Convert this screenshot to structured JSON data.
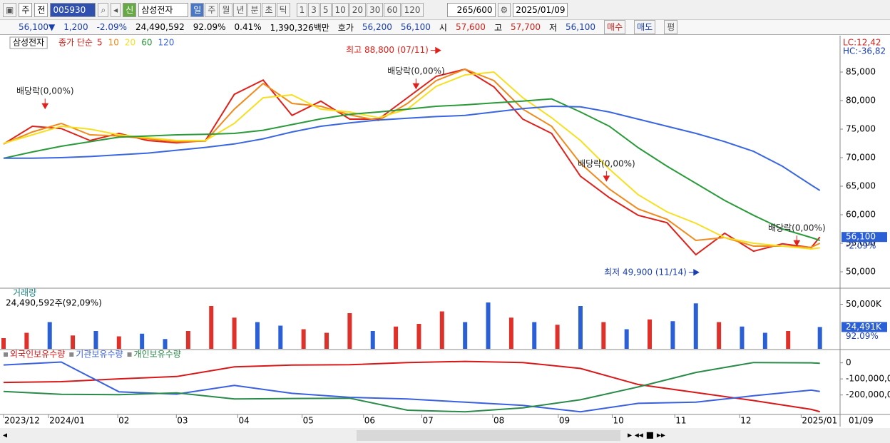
{
  "toolbar": {
    "market": "주",
    "prev": "전",
    "code": "005930",
    "credit": "신",
    "name": "삼성전자",
    "periods": [
      "일",
      "주",
      "월",
      "년",
      "분",
      "초",
      "틱"
    ],
    "intervals": [
      "1",
      "3",
      "5",
      "10",
      "20",
      "30",
      "60",
      "120"
    ],
    "count": "265",
    "max": "/600",
    "date": "2025/01/09"
  },
  "info_bar": {
    "price": "56,100▼",
    "change": "1,200",
    "rate": "-2.09%",
    "volume": "24,490,592",
    "vol_ratio": "92.09%",
    "turnover": "0.41%",
    "amount": "1,390,326백만",
    "ask_label": "호가",
    "ask": "56,200",
    "bid": "56,100",
    "open_label": "시",
    "open": "57,600",
    "high_label": "고",
    "high": "57,700",
    "low_label": "저",
    "low": "56,100",
    "buy": "매수",
    "sell": "매도",
    "eval": "평"
  },
  "chart_data": [
    {
      "type": "line",
      "title": "삼성전자",
      "legend_title": "종가 단순",
      "lc": "LC:12,42",
      "hc": "HC:-36,82",
      "x": [
        0,
        10,
        20,
        30,
        40,
        50,
        60,
        70,
        80,
        90,
        100,
        110,
        120,
        130,
        140,
        150,
        160,
        170,
        180,
        190,
        200,
        210,
        220,
        230,
        240,
        250,
        260,
        270,
        280,
        283
      ],
      "series": [
        {
          "name": "5",
          "color": "#e0201a",
          "values": [
            72400,
            75500,
            75100,
            73000,
            74250,
            73000,
            72600,
            73000,
            81100,
            83600,
            77400,
            79900,
            76750,
            76750,
            80500,
            84250,
            85500,
            82400,
            76750,
            74250,
            66750,
            63000,
            59900,
            58600,
            53000,
            56750,
            53600,
            54900,
            54250,
            56100
          ]
        },
        {
          "name": "10",
          "color": "#f08a1c",
          "values": [
            72400,
            74500,
            76000,
            74000,
            73800,
            73300,
            72800,
            72900,
            78500,
            83000,
            79500,
            79000,
            77500,
            76500,
            79500,
            83500,
            85500,
            83500,
            78500,
            75500,
            69000,
            64500,
            61000,
            59200,
            55500,
            56000,
            54500,
            54500,
            54300,
            55000
          ]
        },
        {
          "name": "20",
          "color": "#f5e020",
          "values": [
            72500,
            74000,
            75500,
            75000,
            74000,
            73500,
            73000,
            73000,
            76000,
            80500,
            81000,
            78500,
            78000,
            77000,
            78500,
            82500,
            84500,
            85000,
            80500,
            77000,
            73000,
            68000,
            63500,
            60500,
            58500,
            56000,
            55000,
            54500,
            54000,
            54200
          ]
        },
        {
          "name": "60",
          "color": "#2a9a3a",
          "values": [
            69900,
            71000,
            72000,
            72800,
            73600,
            73800,
            74000,
            74100,
            74250,
            74800,
            75800,
            76800,
            77600,
            78000,
            78500,
            79000,
            79250,
            79600,
            79900,
            80300,
            78000,
            75500,
            71750,
            68500,
            65500,
            62500,
            59900,
            57500,
            56000,
            55500
          ]
        },
        {
          "name": "120",
          "color": "#3a66e0",
          "values": [
            69900,
            69900,
            70000,
            70200,
            70500,
            70800,
            71300,
            71800,
            72400,
            73300,
            74500,
            75500,
            76100,
            76600,
            76900,
            77200,
            77400,
            78000,
            78600,
            79000,
            78900,
            78000,
            76750,
            75500,
            74250,
            72800,
            71100,
            68500,
            65200,
            64250
          ]
        }
      ],
      "ylim": [
        47250,
        90500
      ],
      "yticks": [
        {
          "value": 50000,
          "label": "50,000"
        },
        {
          "value": 55000,
          "label": "55,000"
        },
        {
          "value": 60000,
          "label": "60,000"
        },
        {
          "value": 65000,
          "label": "65,000"
        },
        {
          "value": 70000,
          "label": "70,000"
        },
        {
          "value": 75000,
          "label": "75,000"
        },
        {
          "value": 80000,
          "label": "80,000"
        },
        {
          "value": 85000,
          "label": "85,000"
        }
      ],
      "xlim": [
        0,
        290
      ],
      "xticks": [
        {
          "value": 0,
          "label": "2023/12"
        },
        {
          "value": 15.6,
          "label": "2024/01"
        },
        {
          "value": 39.6,
          "label": "02"
        },
        {
          "value": 59.9,
          "label": "03"
        },
        {
          "value": 81.2,
          "label": "04"
        },
        {
          "value": 103.5,
          "label": "05"
        },
        {
          "value": 124.8,
          "label": "06"
        },
        {
          "value": 145,
          "label": "07"
        },
        {
          "value": 169.6,
          "label": "08"
        },
        {
          "value": 192.3,
          "label": "09"
        },
        {
          "value": 211,
          "label": "10"
        },
        {
          "value": 232.7,
          "label": "11"
        },
        {
          "value": 255.2,
          "label": "12"
        },
        {
          "value": 276.5,
          "label": "2025/01"
        }
      ],
      "x_end_label": "01/09",
      "last_label": {
        "value": 56100,
        "label": "56,100"
      },
      "change_label": "-2.09%",
      "annotations": [
        {
          "text": "배당락(0,00%)",
          "x": 14.4,
          "y": 78600,
          "arrow": "down",
          "color": "#e0201a"
        },
        {
          "text": "최고 88,800 (07/11)",
          "x": 151.5,
          "y": 88800,
          "arrow": "right",
          "color": "#e0201a"
        },
        {
          "text": "배당락(0,00%)",
          "x": 143,
          "y": 82100,
          "arrow": "down",
          "color": "#e0201a"
        },
        {
          "text": "배당락(0,00%)",
          "x": 209,
          "y": 65900,
          "arrow": "down",
          "color": "#e0201a"
        },
        {
          "text": "최저 49,900 (11/14)",
          "x": 241,
          "y": 49900,
          "arrow": "right",
          "color": "#1a3fb0"
        },
        {
          "text": "배당락(0,00%)",
          "x": 275,
          "y": 54600,
          "arrow": "down",
          "color": "#e0201a"
        }
      ]
    },
    {
      "type": "bar",
      "title": "거래량",
      "subtitle": "24,490,592주(92,09%)",
      "x": [
        0,
        8,
        16,
        24,
        32,
        40,
        48,
        56,
        64,
        72,
        80,
        88,
        96,
        104,
        112,
        120,
        128,
        136,
        144,
        152,
        160,
        168,
        176,
        184,
        192,
        200,
        208,
        216,
        224,
        232,
        240,
        248,
        256,
        264,
        272,
        283
      ],
      "values": [
        12000,
        18000,
        30000,
        15000,
        20000,
        14000,
        17000,
        11000,
        20000,
        48000,
        35000,
        30000,
        26000,
        22000,
        18000,
        40000,
        20000,
        25000,
        28000,
        42000,
        30000,
        52000,
        35000,
        30000,
        27000,
        48000,
        30000,
        22000,
        33000,
        31000,
        51000,
        30000,
        25000,
        18000,
        20000,
        24491
      ],
      "colors": [
        "#e0302a",
        "#e0302a",
        "#2a5fd6",
        "#e0302a",
        "#2a5fd6",
        "#e0302a",
        "#2a5fd6",
        "#2a5fd6",
        "#e0302a",
        "#e0302a",
        "#e0302a",
        "#2a5fd6",
        "#2a5fd6",
        "#e0302a",
        "#e0302a",
        "#e0302a",
        "#2a5fd6",
        "#e0302a",
        "#e0302a",
        "#e0302a",
        "#2a5fd6",
        "#2a5fd6",
        "#e0302a",
        "#2a5fd6",
        "#e0302a",
        "#2a5fd6",
        "#e0302a",
        "#2a5fd6",
        "#e0302a",
        "#2a5fd6",
        "#2a5fd6",
        "#e0302a",
        "#2a5fd6",
        "#2a5fd6",
        "#e0302a",
        "#2a5fd6"
      ],
      "ylim": [
        0,
        65600
      ],
      "yticks": [
        {
          "value": 50000,
          "label": "50,000K"
        }
      ],
      "last_label": {
        "value": 24491,
        "label": "24,491K"
      },
      "change_label": "92.09%"
    },
    {
      "type": "line",
      "x": [
        0,
        20,
        40,
        60,
        80,
        100,
        120,
        140,
        160,
        180,
        200,
        220,
        240,
        260,
        280,
        283
      ],
      "series": [
        {
          "name": "외국인보유수량",
          "color": "#d81818",
          "values": [
            -122000,
            -117000,
            -100000,
            -85000,
            -25000,
            -14000,
            -12000,
            2000,
            9000,
            2000,
            -35000,
            -135000,
            -185000,
            -235000,
            -290000,
            -304000
          ]
        },
        {
          "name": "기관보유수량",
          "color": "#3a60e0",
          "values": [
            -13000,
            5000,
            -180000,
            -195000,
            -140000,
            -190000,
            -215000,
            -225000,
            -245000,
            -265000,
            -305000,
            -252000,
            -245000,
            -205000,
            -170000,
            -178000
          ]
        },
        {
          "name": "개인보유수량",
          "color": "#2a8a4a",
          "values": [
            -178000,
            -196000,
            -198000,
            -187000,
            -225000,
            -222000,
            -220000,
            -295000,
            -305000,
            -280000,
            -230000,
            -150000,
            -60000,
            2000,
            0,
            -3000
          ]
        }
      ],
      "ylim": [
        -317000,
        65000
      ],
      "yticks": [
        0,
        {
          "value": -100000,
          "label": "-100,000,0"
        },
        {
          "value": -200000,
          "label": "-200,000,0"
        }
      ]
    }
  ]
}
